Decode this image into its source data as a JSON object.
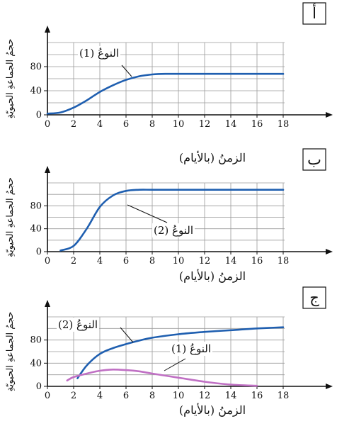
{
  "chart_data": [
    {
      "type": "line",
      "panel_label": "أ",
      "ylabel": "حجمُ الجماعةِ الحيويّةِ",
      "xlabel": "الزمنُ (بالأيام)",
      "x_ticks": [
        "0",
        "2",
        "4",
        "6",
        "8",
        "10",
        "12",
        "14",
        "16",
        "18"
      ],
      "y_ticks": [
        "0",
        "40",
        "80"
      ],
      "xlim": [
        0,
        18
      ],
      "ylim": [
        0,
        120
      ],
      "grid": true,
      "series": [
        {
          "name": "النوعُ (1)",
          "color": "#1f5fb0",
          "points": [
            [
              0,
              2
            ],
            [
              1,
              4
            ],
            [
              2,
              12
            ],
            [
              3,
              24
            ],
            [
              4,
              38
            ],
            [
              5,
              49
            ],
            [
              6,
              58
            ],
            [
              7,
              64
            ],
            [
              8,
              67
            ],
            [
              9,
              68
            ],
            [
              10,
              68
            ],
            [
              12,
              68
            ],
            [
              14,
              68
            ],
            [
              16,
              68
            ],
            [
              18,
              68
            ]
          ]
        }
      ]
    },
    {
      "type": "line",
      "panel_label": "ب",
      "ylabel": "حجمُ الجماعةِ الحيويّةِ",
      "xlabel": "الزمنُ (بالأيام)",
      "x_ticks": [
        "0",
        "2",
        "4",
        "6",
        "8",
        "10",
        "12",
        "14",
        "16",
        "18"
      ],
      "y_ticks": [
        "0",
        "40",
        "80"
      ],
      "xlim": [
        0,
        18
      ],
      "ylim": [
        0,
        120
      ],
      "grid": true,
      "series": [
        {
          "name": "النوعُ (2)",
          "color": "#1f5fb0",
          "points": [
            [
              1,
              2
            ],
            [
              2,
              10
            ],
            [
              3,
              40
            ],
            [
              4,
              78
            ],
            [
              5,
              98
            ],
            [
              6,
              106
            ],
            [
              7,
              108
            ],
            [
              8,
              108
            ],
            [
              10,
              108
            ],
            [
              12,
              108
            ],
            [
              14,
              108
            ],
            [
              16,
              108
            ],
            [
              18,
              108
            ]
          ]
        }
      ]
    },
    {
      "type": "line",
      "panel_label": "ج",
      "ylabel": "حجمُ الجماعةِ الحيويّةِ",
      "xlabel": "الزمنُ (بالأيام)",
      "x_ticks": [
        "0",
        "2",
        "4",
        "6",
        "8",
        "10",
        "12",
        "14",
        "16",
        "18"
      ],
      "y_ticks": [
        "0",
        "40",
        "80"
      ],
      "xlim": [
        0,
        18
      ],
      "ylim": [
        0,
        120
      ],
      "grid": true,
      "series": [
        {
          "name": "النوعُ (2)",
          "color": "#1f5fb0",
          "points": [
            [
              2.3,
              14
            ],
            [
              3,
              36
            ],
            [
              4,
              56
            ],
            [
              5,
              66
            ],
            [
              6,
              73
            ],
            [
              7,
              79
            ],
            [
              8,
              84
            ],
            [
              10,
              90
            ],
            [
              12,
              94
            ],
            [
              14,
              97
            ],
            [
              16,
              100
            ],
            [
              18,
              102
            ]
          ]
        },
        {
          "name": "النوعُ (1)",
          "color": "#c070c4",
          "points": [
            [
              1.5,
              10
            ],
            [
              2,
              16
            ],
            [
              3,
              22
            ],
            [
              4,
              27
            ],
            [
              5,
              29
            ],
            [
              6,
              28
            ],
            [
              7,
              26
            ],
            [
              8,
              22
            ],
            [
              10,
              15
            ],
            [
              12,
              8
            ],
            [
              14,
              3
            ],
            [
              16,
              1
            ]
          ]
        }
      ]
    }
  ]
}
